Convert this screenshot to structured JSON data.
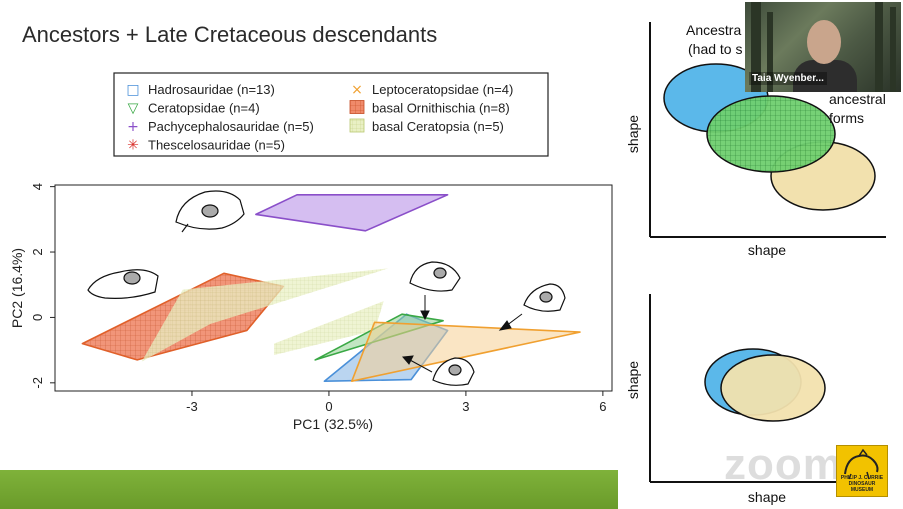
{
  "slide": {
    "title": "Ancestors + Late Cretaceous descendants"
  },
  "legend": {
    "entries": [
      {
        "label": "Hadrosauridae (n=13)",
        "symbol": "□",
        "color": "#4a90d9"
      },
      {
        "label": "Ceratopsidae (n=4)",
        "symbol": "▽",
        "color": "#3aa845"
      },
      {
        "label": "Pachycephalosauridae (n=5)",
        "symbol": "+",
        "color": "#8a4fc9"
      },
      {
        "label": "Thescelosauridae (n=5)",
        "symbol": "✳",
        "color": "#d9302a"
      },
      {
        "label": "Leptoceratopsidae (n=4)",
        "symbol": "×",
        "color": "#f0a030"
      },
      {
        "label": "basal Ornithischia (n=8)",
        "symbol": "",
        "color": "#e0602a"
      },
      {
        "label": "basal Ceratopsia (n=5)",
        "symbol": "",
        "color": "#c8d878"
      }
    ]
  },
  "chart_data": [
    {
      "type": "scatter",
      "xlabel": "PC1 (32.5%)",
      "ylabel": "PC2 (16.4%)",
      "xlim": [
        -6.0,
        6.2
      ],
      "ylim": [
        -2.25,
        4.05
      ],
      "x_ticks": [
        -3,
        0,
        3,
        6
      ],
      "y_ticks": [
        -2,
        0,
        2,
        4
      ],
      "x_tick_labels": [
        "-3",
        "0",
        "3",
        "6"
      ],
      "y_tick_labels": [
        "-2",
        "0",
        "2",
        "4"
      ],
      "grid": false,
      "series": [
        {
          "name": "Pachycephalosauridae (n=5)",
          "color": "#8a4fc9",
          "fill": "#c7a8ec",
          "polygon": [
            [
              -1.6,
              3.15
            ],
            [
              -0.7,
              3.75
            ],
            [
              2.6,
              3.75
            ],
            [
              0.8,
              2.65
            ]
          ]
        },
        {
          "name": "basal Ornithischia (n=8)",
          "color": "#e0602a",
          "fill": "#f08a6a",
          "polygon": [
            [
              -5.4,
              -0.8
            ],
            [
              -2.3,
              1.35
            ],
            [
              -1.0,
              0.95
            ],
            [
              -1.8,
              -0.4
            ],
            [
              -4.2,
              -1.3
            ]
          ]
        },
        {
          "name": "basal Ceratopsia (n=5)",
          "color": "#c8d878",
          "fill": "#e2ecae",
          "polygon": [
            [
              -3.2,
              0.85
            ],
            [
              1.3,
              1.5
            ],
            [
              -2.6,
              -0.2
            ],
            [
              -4.1,
              -1.35
            ]
          ]
        },
        {
          "name": "basal Ceratopsia (n=5)",
          "color": "#c8d878",
          "fill": "#e2ecae",
          "polygon": [
            [
              -1.2,
              -0.8
            ],
            [
              1.2,
              0.5
            ],
            [
              1.0,
              -0.4
            ],
            [
              -1.2,
              -1.15
            ]
          ]
        },
        {
          "name": "Hadrosauridae (n=13)",
          "color": "#4a90d9",
          "fill": "#9cc3ea",
          "polygon": [
            [
              -0.1,
              -1.95
            ],
            [
              1.7,
              0.1
            ],
            [
              2.6,
              -0.4
            ],
            [
              1.8,
              -1.9
            ]
          ]
        },
        {
          "name": "Ceratopsidae (n=4)",
          "color": "#3aa845",
          "fill": "#8fd28f",
          "polygon": [
            [
              -0.3,
              -1.3
            ],
            [
              1.6,
              0.1
            ],
            [
              2.5,
              -0.1
            ]
          ]
        },
        {
          "name": "Leptoceratopsidae (n=4)",
          "color": "#f0a030",
          "fill": "#f6cf94",
          "polygon": [
            [
              0.5,
              -1.95
            ],
            [
              1.0,
              -0.15
            ],
            [
              5.5,
              -0.45
            ]
          ]
        }
      ]
    },
    {
      "type": "diagram",
      "xlabel": "shape",
      "ylabel": "shape",
      "annotations": [
        "Ancestra",
        "(had to s",
        "ancestral",
        "forms"
      ]
    },
    {
      "type": "diagram",
      "xlabel": "shape",
      "ylabel": "shape"
    }
  ],
  "video": {
    "participant_name": "Taia Wyenber..."
  },
  "watermark": {
    "text": "zoom"
  },
  "logo": {
    "text": "PHILIP J. CURRIE DINOSAUR MUSEUM"
  }
}
